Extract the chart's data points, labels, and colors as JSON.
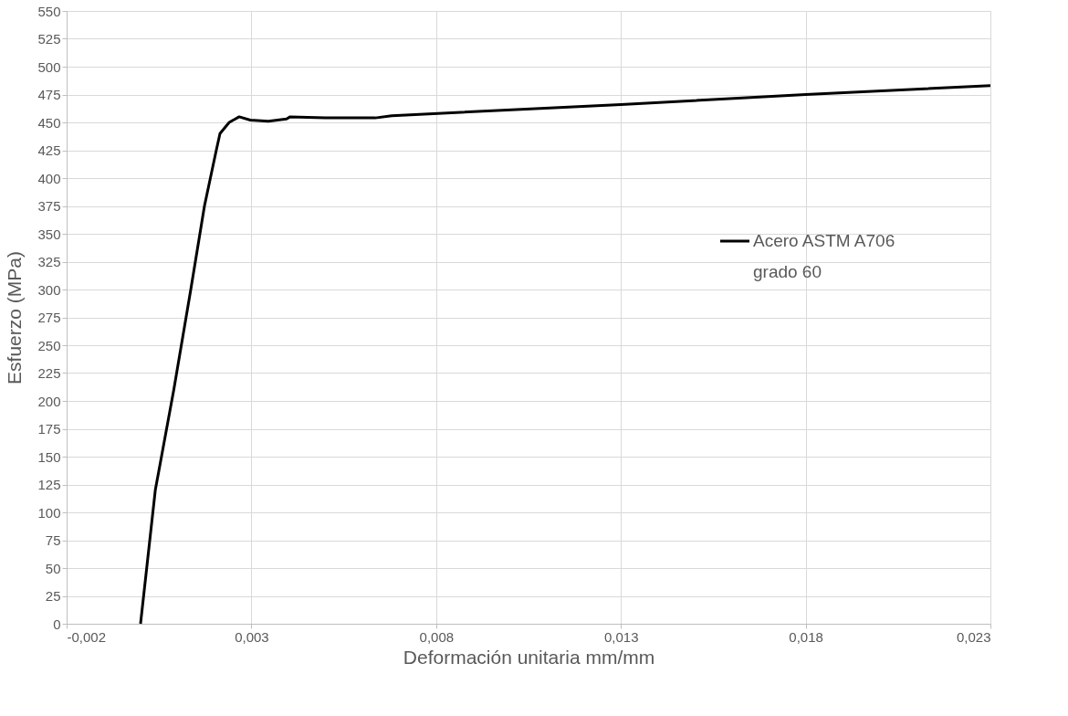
{
  "chart_data": {
    "type": "line",
    "xlabel": "Deformación unitaria mm/mm",
    "ylabel": "Esfuerzo (MPa)",
    "xlim": [
      -0.002,
      0.023
    ],
    "xticks": [
      {
        "value": -0.002,
        "label": "-0,002"
      },
      {
        "value": 0.003,
        "label": "0,003"
      },
      {
        "value": 0.008,
        "label": "0,008"
      },
      {
        "value": 0.013,
        "label": "0,013"
      },
      {
        "value": 0.018,
        "label": "0,018"
      },
      {
        "value": 0.023,
        "label": "0,023"
      }
    ],
    "ylim": [
      0,
      550
    ],
    "yticks": [
      0,
      25,
      50,
      75,
      100,
      125,
      150,
      175,
      200,
      225,
      250,
      275,
      300,
      325,
      350,
      375,
      400,
      425,
      450,
      475,
      500,
      525,
      550
    ],
    "grid": true,
    "legend": "right",
    "line_style": "solid",
    "marker": "none",
    "series": [
      {
        "name": "Acero ASTM A706 grado 60",
        "color": "#000000",
        "x": [
          0.0,
          0.0002,
          0.0004,
          0.0009,
          0.00136,
          0.00173,
          0.00205,
          0.00215,
          0.0024,
          0.00267,
          0.00297,
          0.00346,
          0.00395,
          0.00405,
          0.005,
          0.00635,
          0.0068,
          0.013,
          0.018,
          0.023
        ],
        "values": [
          0,
          60,
          120,
          210,
          300,
          375,
          425,
          440,
          450,
          455,
          452,
          451,
          453,
          455,
          454,
          454,
          456,
          466,
          475,
          483
        ]
      }
    ]
  }
}
